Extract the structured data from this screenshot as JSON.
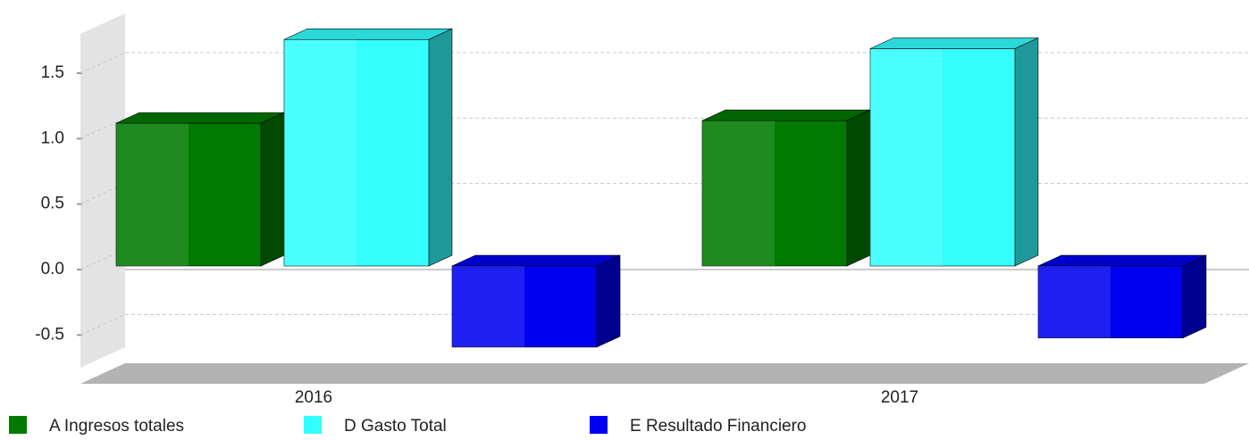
{
  "chart_data": {
    "type": "bar3d",
    "categories": [
      "2016",
      "2017"
    ],
    "series": [
      {
        "name": "A Ingresos totales",
        "color": "#007a00",
        "values": [
          1.09,
          1.11
        ]
      },
      {
        "name": "D Gasto Total",
        "color": "#33ffff",
        "values": [
          1.73,
          1.66
        ]
      },
      {
        "name": "E Resultado Financiero",
        "color": "#0000f0",
        "values": [
          -0.62,
          -0.55
        ]
      }
    ],
    "ylim": [
      -0.75,
      1.8
    ],
    "yticks": [
      -0.5,
      {
        "value": 0,
        "label": "0.0"
      },
      0.5,
      {
        "value": 1,
        "label": "1.0"
      },
      1.5
    ],
    "grid": true,
    "legend": "bottom"
  }
}
